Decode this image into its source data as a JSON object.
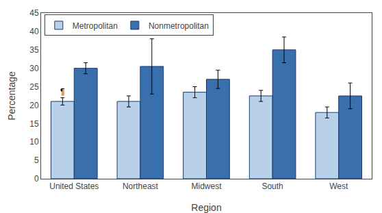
{
  "chart_data": {
    "type": "bar",
    "xlabel": "Region",
    "ylabel": "Percentage",
    "categories": [
      "United States",
      "Northeast",
      "Midwest",
      "South",
      "West"
    ],
    "series": [
      {
        "name": "Metropolitan",
        "color": "#b8d0e8",
        "values": [
          21,
          21,
          23.5,
          22.5,
          18
        ],
        "errors": [
          1.0,
          1.5,
          1.5,
          1.5,
          1.5
        ]
      },
      {
        "name": "Nonmetropolitan",
        "color": "#3a6fad",
        "values": [
          30,
          30.5,
          27,
          35,
          22.5
        ],
        "errors": [
          1.5,
          7.5,
          2.5,
          3.5,
          3.5
        ]
      }
    ],
    "annotations": [
      {
        "text": "¶",
        "category": "United States",
        "series": "Metropolitan"
      }
    ],
    "ylim": [
      0,
      45
    ],
    "yticks": [
      0,
      5,
      10,
      15,
      20,
      25,
      30,
      35,
      40,
      45
    ],
    "grid": false,
    "legend": "upper left"
  }
}
